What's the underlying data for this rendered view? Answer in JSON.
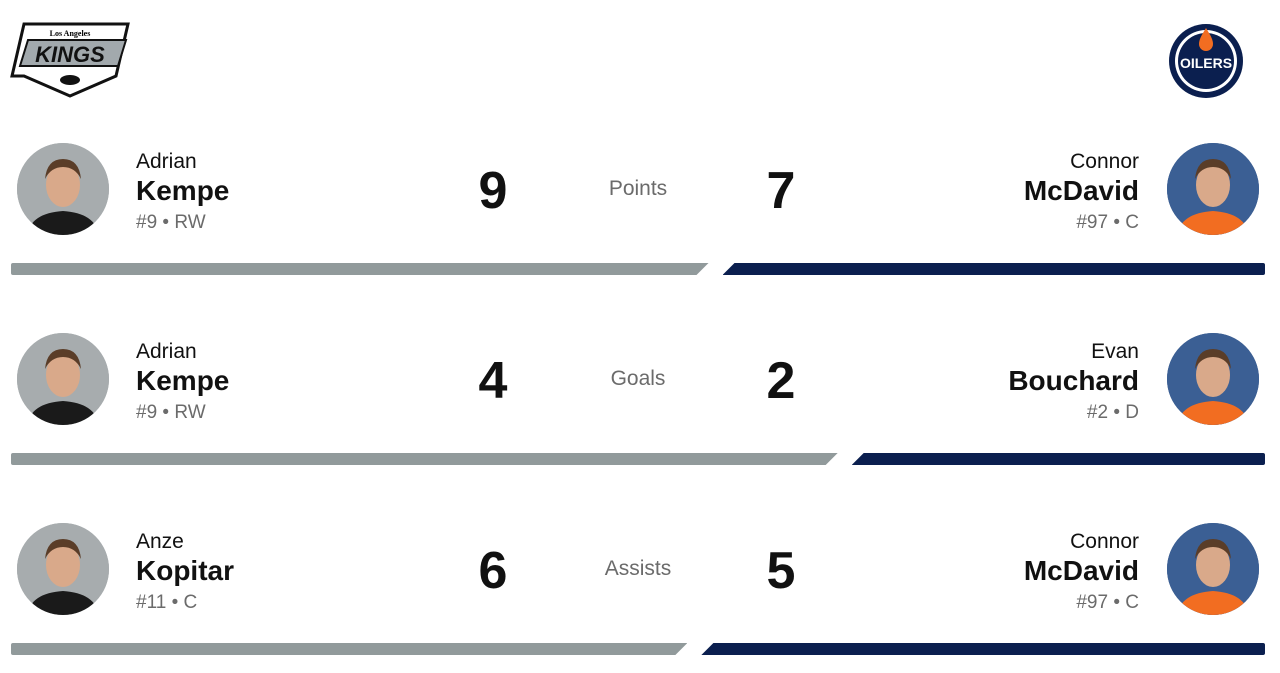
{
  "teams": {
    "left": {
      "name": "Los Angeles Kings",
      "logo_text": "KINGS",
      "logo_sub": "Los Angeles",
      "color": "#919a9b"
    },
    "right": {
      "name": "Edmonton Oilers",
      "logo_text": "OILERS",
      "color": "#0b1f4f",
      "accent": "#f26d21"
    }
  },
  "rows": [
    {
      "stat": "Points",
      "left": {
        "first": "Adrian",
        "last": "Kempe",
        "meta": "#9 • RW",
        "value": "9"
      },
      "right": {
        "first": "Connor",
        "last": "McDavid",
        "meta": "#97 • C",
        "value": "7"
      }
    },
    {
      "stat": "Goals",
      "left": {
        "first": "Adrian",
        "last": "Kempe",
        "meta": "#9 • RW",
        "value": "4"
      },
      "right": {
        "first": "Evan",
        "last": "Bouchard",
        "meta": "#2 • D",
        "value": "2"
      }
    },
    {
      "stat": "Assists",
      "left": {
        "first": "Anze",
        "last": "Kopitar",
        "meta": "#11 • C",
        "value": "6"
      },
      "right": {
        "first": "Connor",
        "last": "McDavid",
        "meta": "#97 • C",
        "value": "5"
      }
    }
  ]
}
